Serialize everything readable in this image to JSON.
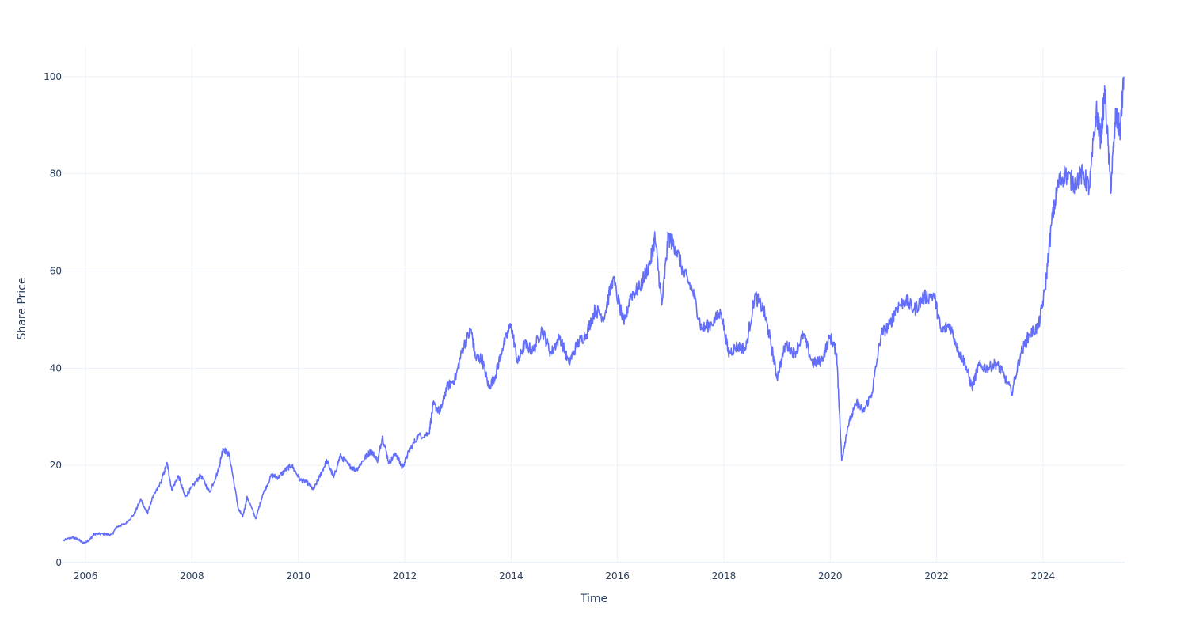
{
  "chart_data": {
    "type": "line",
    "title": "",
    "xlabel": "Time",
    "ylabel": "Share Price",
    "xlim": [
      "2005-08-01",
      "2025-07-15"
    ],
    "ylim": [
      0,
      106
    ],
    "grid": true,
    "legend": "none",
    "x_ticks": [
      "2006",
      "2008",
      "2010",
      "2012",
      "2014",
      "2016",
      "2018",
      "2020",
      "2022",
      "2024"
    ],
    "y_ticks": [
      "0",
      "20",
      "40",
      "60",
      "80",
      "100"
    ],
    "series": [
      {
        "color": "#636efa",
        "points": [
          [
            "2005-08-01",
            4.5
          ],
          [
            "2005-10-01",
            5.2
          ],
          [
            "2005-11-15",
            4.7
          ],
          [
            "2005-12-15",
            4.0
          ],
          [
            "2006-02-01",
            4.8
          ],
          [
            "2006-03-01",
            5.9
          ],
          [
            "2006-05-01",
            5.9
          ],
          [
            "2006-07-01",
            5.7
          ],
          [
            "2006-08-01",
            7.3
          ],
          [
            "2006-10-01",
            8.0
          ],
          [
            "2006-12-01",
            10.0
          ],
          [
            "2007-01-15",
            13.0
          ],
          [
            "2007-03-01",
            10.0
          ],
          [
            "2007-04-01",
            13.0
          ],
          [
            "2007-06-01",
            16.5
          ],
          [
            "2007-07-15",
            20.5
          ],
          [
            "2007-08-15",
            15.0
          ],
          [
            "2007-10-01",
            17.8
          ],
          [
            "2007-11-15",
            13.5
          ],
          [
            "2008-01-01",
            15.5
          ],
          [
            "2008-03-01",
            18.0
          ],
          [
            "2008-05-01",
            14.5
          ],
          [
            "2008-07-01",
            19.0
          ],
          [
            "2008-08-01",
            23.5
          ],
          [
            "2008-09-15",
            22.0
          ],
          [
            "2008-11-15",
            11.0
          ],
          [
            "2008-12-15",
            9.5
          ],
          [
            "2009-01-15",
            13.5
          ],
          [
            "2009-03-15",
            9.0
          ],
          [
            "2009-05-01",
            14.0
          ],
          [
            "2009-07-01",
            18.0
          ],
          [
            "2009-08-15",
            17.5
          ],
          [
            "2009-10-01",
            19.0
          ],
          [
            "2009-11-15",
            20.0
          ],
          [
            "2010-01-15",
            17.0
          ],
          [
            "2010-03-01",
            16.5
          ],
          [
            "2010-04-15",
            15.0
          ],
          [
            "2010-06-01",
            18.0
          ],
          [
            "2010-07-15",
            21.0
          ],
          [
            "2010-09-01",
            17.5
          ],
          [
            "2010-10-15",
            22.0
          ],
          [
            "2010-12-15",
            20.0
          ],
          [
            "2011-02-01",
            19.0
          ],
          [
            "2011-04-01",
            21.5
          ],
          [
            "2011-05-15",
            23.0
          ],
          [
            "2011-07-01",
            21.0
          ],
          [
            "2011-08-01",
            26.0
          ],
          [
            "2011-09-15",
            20.5
          ],
          [
            "2011-11-01",
            22.5
          ],
          [
            "2011-12-15",
            19.5
          ],
          [
            "2012-02-01",
            23.0
          ],
          [
            "2012-04-01",
            26.0
          ],
          [
            "2012-06-15",
            26.5
          ],
          [
            "2012-07-15",
            32.5
          ],
          [
            "2012-09-01",
            31.0
          ],
          [
            "2012-10-15",
            36.0
          ],
          [
            "2012-12-15",
            38.0
          ],
          [
            "2013-02-01",
            44.0
          ],
          [
            "2013-04-01",
            48.0
          ],
          [
            "2013-05-01",
            42.0
          ],
          [
            "2013-06-15",
            42.0
          ],
          [
            "2013-08-01",
            36.0
          ],
          [
            "2013-09-15",
            38.5
          ],
          [
            "2013-11-01",
            44.0
          ],
          [
            "2014-01-01",
            49.0
          ],
          [
            "2014-02-15",
            41.0
          ],
          [
            "2014-04-01",
            45.0
          ],
          [
            "2014-06-01",
            43.5
          ],
          [
            "2014-08-01",
            48.0
          ],
          [
            "2014-10-01",
            43.0
          ],
          [
            "2014-12-01",
            46.5
          ],
          [
            "2015-02-01",
            41.0
          ],
          [
            "2015-04-01",
            45.0
          ],
          [
            "2015-06-01",
            47.0
          ],
          [
            "2015-08-01",
            52.0
          ],
          [
            "2015-10-01",
            50.5
          ],
          [
            "2015-12-01",
            58.5
          ],
          [
            "2016-02-15",
            49.0
          ],
          [
            "2016-04-01",
            55.0
          ],
          [
            "2016-06-01",
            56.5
          ],
          [
            "2016-08-15",
            62.0
          ],
          [
            "2016-09-15",
            67.0
          ],
          [
            "2016-11-01",
            53.0
          ],
          [
            "2016-12-15",
            67.0
          ],
          [
            "2017-02-01",
            65.0
          ],
          [
            "2017-04-01",
            59.5
          ],
          [
            "2017-06-01",
            56.0
          ],
          [
            "2017-08-01",
            48.0
          ],
          [
            "2017-10-01",
            49.0
          ],
          [
            "2017-12-15",
            51.5
          ],
          [
            "2018-02-01",
            43.0
          ],
          [
            "2018-04-01",
            44.5
          ],
          [
            "2018-06-01",
            44.0
          ],
          [
            "2018-08-01",
            55.0
          ],
          [
            "2018-10-01",
            52.0
          ],
          [
            "2018-11-15",
            46.0
          ],
          [
            "2019-01-01",
            38.0
          ],
          [
            "2019-03-01",
            45.0
          ],
          [
            "2019-05-01",
            43.0
          ],
          [
            "2019-07-01",
            47.0
          ],
          [
            "2019-09-01",
            41.0
          ],
          [
            "2019-11-01",
            41.5
          ],
          [
            "2020-01-01",
            46.5
          ],
          [
            "2020-02-15",
            43.0
          ],
          [
            "2020-03-20",
            21.0
          ],
          [
            "2020-05-01",
            28.0
          ],
          [
            "2020-07-01",
            33.0
          ],
          [
            "2020-08-15",
            31.0
          ],
          [
            "2020-10-15",
            35.0
          ],
          [
            "2020-12-15",
            47.0
          ],
          [
            "2021-02-15",
            49.0
          ],
          [
            "2021-04-01",
            52.5
          ],
          [
            "2021-06-01",
            54.0
          ],
          [
            "2021-08-01",
            52.0
          ],
          [
            "2021-10-01",
            54.5
          ],
          [
            "2021-12-15",
            55.0
          ],
          [
            "2022-02-01",
            47.5
          ],
          [
            "2022-04-01",
            49.0
          ],
          [
            "2022-06-01",
            43.5
          ],
          [
            "2022-07-15",
            41.0
          ],
          [
            "2022-09-01",
            36.0
          ],
          [
            "2022-10-15",
            40.5
          ],
          [
            "2022-12-15",
            40.0
          ],
          [
            "2023-02-15",
            41.0
          ],
          [
            "2023-04-01",
            39.0
          ],
          [
            "2023-06-01",
            35.0
          ],
          [
            "2023-08-01",
            43.0
          ],
          [
            "2023-10-01",
            47.0
          ],
          [
            "2023-12-01",
            48.5
          ],
          [
            "2024-01-15",
            56.0
          ],
          [
            "2024-03-01",
            70.0
          ],
          [
            "2024-04-15",
            78.0
          ],
          [
            "2024-06-01",
            80.0
          ],
          [
            "2024-08-01",
            78.0
          ],
          [
            "2024-10-01",
            80.0
          ],
          [
            "2024-11-15",
            77.0
          ],
          [
            "2025-01-01",
            93.0
          ],
          [
            "2025-02-01",
            87.0
          ],
          [
            "2025-03-01",
            97.0
          ],
          [
            "2025-04-10",
            77.0
          ],
          [
            "2025-05-15",
            92.0
          ],
          [
            "2025-06-15",
            89.0
          ],
          [
            "2025-07-10",
            100.0
          ]
        ]
      }
    ]
  }
}
